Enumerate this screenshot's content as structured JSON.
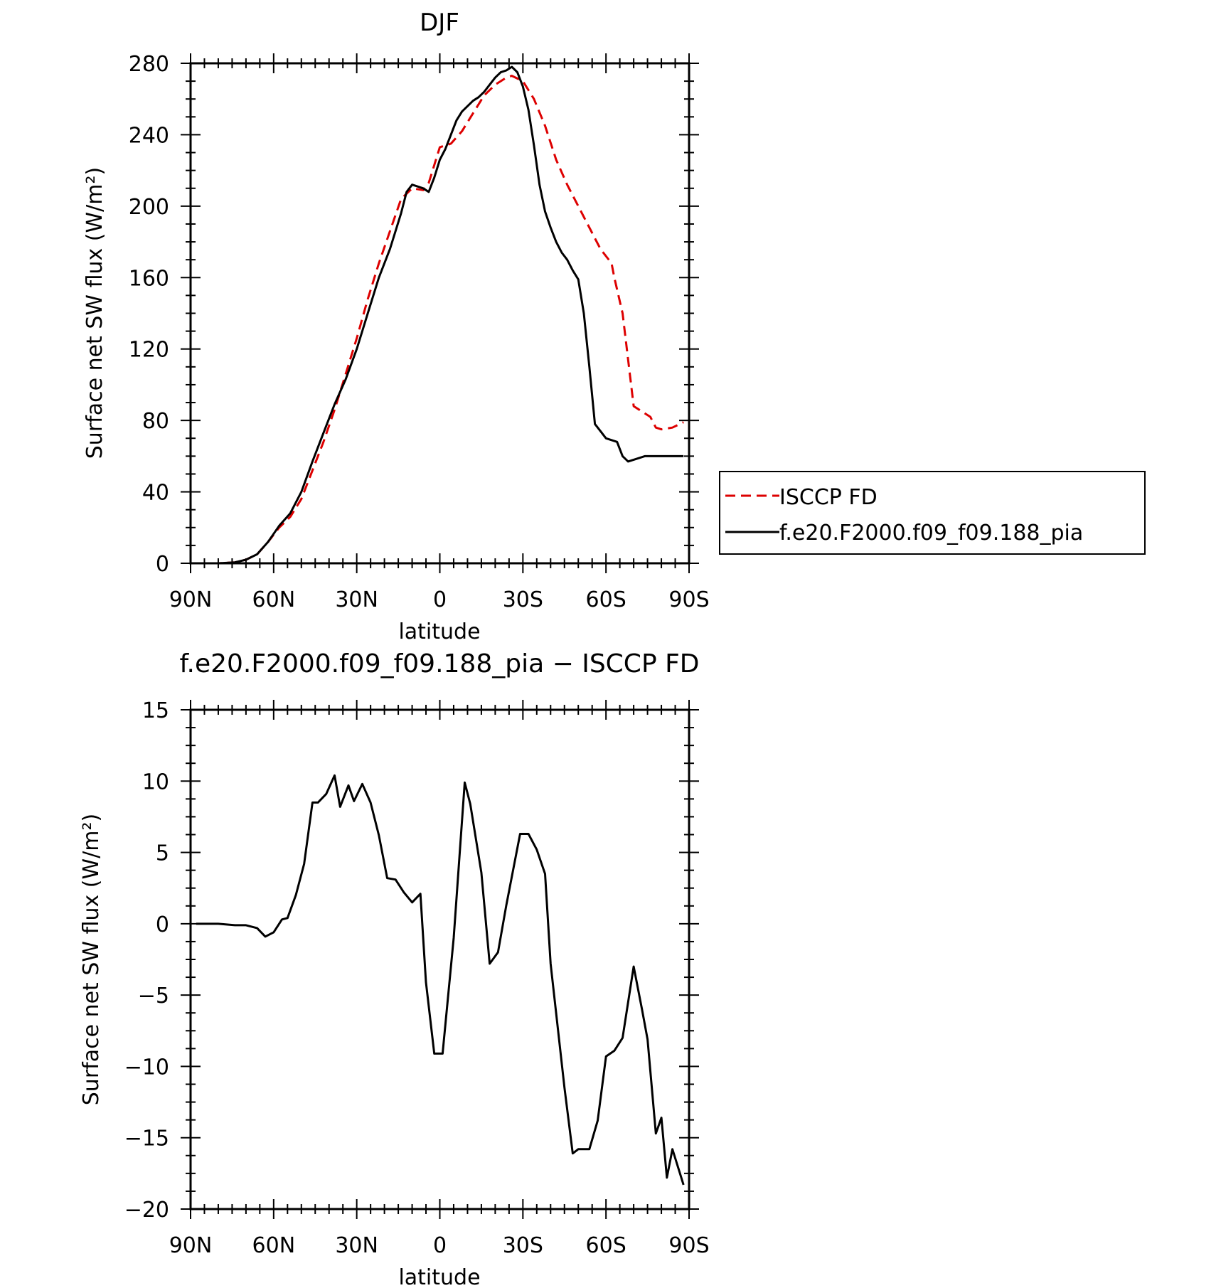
{
  "chart_data": [
    {
      "type": "line",
      "title": "DJF",
      "xlabel": "latitude",
      "ylabel": "Surface net SW flux (W/m²)",
      "xlim": [
        -90,
        90
      ],
      "ylim": [
        0,
        280
      ],
      "x_ticks": [
        -90,
        -60,
        -30,
        0,
        30,
        60,
        90
      ],
      "x_tick_labels": [
        "90N",
        "60N",
        "30N",
        "0",
        "30S",
        "60S",
        "90S"
      ],
      "y_ticks": [
        0,
        40,
        80,
        120,
        160,
        200,
        240,
        280
      ],
      "y_tick_labels": [
        "0",
        "40",
        "80",
        "120",
        "160",
        "200",
        "240",
        "280"
      ],
      "legend": {
        "placement": "outside-right",
        "entries": [
          "ISCCP FD",
          "f.e20.F2000.f09_f09.188_pia"
        ]
      },
      "series": [
        {
          "name": "ISCCP FD",
          "color": "#dd0000",
          "dash": "dashed",
          "x": [
            -88,
            -80,
            -74,
            -70,
            -66,
            -62,
            -58,
            -54,
            -50,
            -46,
            -42,
            -38,
            -34,
            -30,
            -26,
            -22,
            -18,
            -14,
            -10,
            -6,
            -4,
            0,
            4,
            8,
            12,
            16,
            20,
            24,
            26,
            30,
            34,
            38,
            42,
            46,
            50,
            54,
            58,
            62,
            63,
            66,
            70,
            74,
            76,
            78,
            80,
            84,
            88
          ],
          "y": [
            0,
            0,
            0.5,
            2,
            5,
            12,
            20,
            26,
            36,
            52,
            68,
            86,
            106,
            126,
            148,
            168,
            186,
            204,
            210,
            209,
            213,
            233,
            235,
            242,
            252,
            262,
            268,
            272,
            273,
            270,
            260,
            245,
            226,
            212,
            200,
            188,
            176,
            168,
            160,
            140,
            88,
            84,
            82,
            76,
            75,
            76,
            79
          ]
        },
        {
          "name": "f.e20.F2000.f09_f09.188_pia",
          "color": "#000000",
          "dash": "solid",
          "x": [
            -88,
            -80,
            -74,
            -70,
            -66,
            -62,
            -58,
            -54,
            -50,
            -46,
            -42,
            -38,
            -34,
            -30,
            -26,
            -22,
            -18,
            -14,
            -12,
            -10,
            -8,
            -6,
            -4,
            -2,
            0,
            2,
            4,
            6,
            8,
            10,
            12,
            14,
            16,
            18,
            20,
            22,
            24,
            26,
            28,
            30,
            32,
            34,
            36,
            38,
            40,
            42,
            44,
            46,
            48,
            50,
            52,
            54,
            56,
            58,
            60,
            62,
            64,
            66,
            68,
            70,
            72,
            74,
            76,
            78,
            80,
            82,
            84,
            86,
            88
          ],
          "y": [
            0,
            0,
            0.5,
            2,
            5,
            12,
            21,
            28,
            40,
            57,
            73,
            89,
            103,
            120,
            140,
            160,
            176,
            196,
            208,
            212,
            211,
            210,
            208,
            216,
            226,
            232,
            240,
            248,
            253,
            256,
            259,
            261,
            264,
            268,
            272,
            275,
            276,
            278,
            275,
            267,
            254,
            234,
            212,
            197,
            188,
            180,
            174,
            170,
            164,
            159,
            140,
            110,
            78,
            74,
            70,
            69,
            68,
            60,
            57,
            58,
            59,
            60,
            60,
            60,
            60,
            60,
            60,
            60,
            60
          ]
        }
      ]
    },
    {
      "type": "line",
      "title": "f.e20.F2000.f09_f09.188_pia − ISCCP FD",
      "xlabel": "latitude",
      "ylabel": "Surface net SW flux (W/m²)",
      "xlim": [
        -90,
        90
      ],
      "ylim": [
        -20,
        15
      ],
      "x_ticks": [
        -90,
        -60,
        -30,
        0,
        30,
        60,
        90
      ],
      "x_tick_labels": [
        "90N",
        "60N",
        "30N",
        "0",
        "30S",
        "60S",
        "90S"
      ],
      "y_ticks": [
        -20,
        -15,
        -10,
        -5,
        0,
        5,
        10,
        15
      ],
      "y_tick_labels": [
        "−20",
        "−15",
        "−10",
        "−5",
        "0",
        "5",
        "10",
        "15"
      ],
      "series": [
        {
          "color": "#000000",
          "dash": "solid",
          "x": [
            -88,
            -80,
            -74,
            -70,
            -66,
            -63,
            -60,
            -57,
            -55,
            -52,
            -49,
            -46,
            -44,
            -41,
            -38,
            -36,
            -33,
            -31,
            -28,
            -25,
            -22,
            -19,
            -16,
            -13,
            -10,
            -7,
            -5,
            -2,
            1,
            5,
            9,
            11,
            15,
            18,
            21,
            24,
            29,
            32,
            35,
            38,
            40,
            45,
            48,
            50,
            54,
            57,
            60,
            63,
            66,
            70,
            73,
            75,
            78,
            80,
            82,
            84,
            88
          ],
          "y": [
            0,
            0,
            -0.1,
            -0.1,
            -0.3,
            -0.9,
            -0.6,
            0.3,
            0.4,
            2.0,
            4.2,
            8.5,
            8.5,
            9.1,
            10.4,
            8.2,
            9.7,
            8.6,
            9.8,
            8.5,
            6.2,
            3.2,
            3.1,
            2.2,
            1.5,
            2.1,
            -4.1,
            -9.1,
            -9.1,
            -1.0,
            9.9,
            8.4,
            3.6,
            -2.8,
            -2.0,
            1.3,
            6.3,
            6.3,
            5.2,
            3.5,
            -2.8,
            -11.5,
            -16.1,
            -15.8,
            -15.8,
            -13.8,
            -9.3,
            -8.9,
            -8.0,
            -3.0,
            -6.0,
            -8.1,
            -14.7,
            -13.6,
            -17.8,
            -15.8,
            -18.3
          ]
        }
      ]
    }
  ]
}
